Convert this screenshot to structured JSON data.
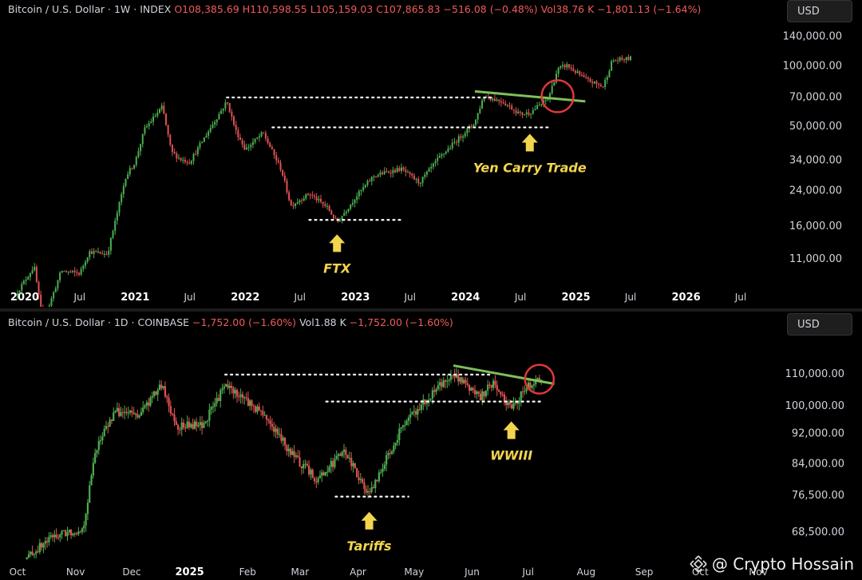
{
  "top": {
    "title": "Bitcoin / U.S. Dollar · 1W · INDEX",
    "stats": [
      "O108,385.69",
      "H110,598.55",
      "L105,159.03",
      "C107,865.83",
      "−516.08 (−0.48%)",
      "Vol38.76 K",
      "−1,801.13 (−1.64%)"
    ],
    "currency": "USD"
  },
  "bottom": {
    "title": "Bitcoin / U.S. Dollar · 1D · COINBASE",
    "stats": [
      "−1,752.00 (−1.60%)",
      "Vol1.88 K",
      "−1,752.00 (−1.60%)"
    ],
    "currency": "USD"
  },
  "watermark": "@ Crypto Hossain",
  "colors": {
    "up": "#4caf50",
    "down": "#e05252",
    "trendline": "#7fbf5a",
    "circle": "#e03838",
    "annotation": "#f2d54e",
    "dotted": "#ffffff"
  },
  "chart_data": [
    {
      "type": "candlestick",
      "title": "Bitcoin / U.S. Dollar · 1W · INDEX",
      "scale": "log",
      "y_ticks": [
        11000,
        16000,
        24000,
        34000,
        50000,
        70000,
        100000,
        140000
      ],
      "y_tick_labels": [
        "11,000.00",
        "16,000.00",
        "24,000.00",
        "34,000.00",
        "50,000.00",
        "70,000.00",
        "100,000.00",
        "140,000.00"
      ],
      "x_ticks": [
        {
          "label": "2020",
          "date": "2020-01",
          "major": true
        },
        {
          "label": "Jul",
          "date": "2020-07",
          "major": false
        },
        {
          "label": "2021",
          "date": "2021-01",
          "major": true
        },
        {
          "label": "Jul",
          "date": "2021-07",
          "major": false
        },
        {
          "label": "2022",
          "date": "2022-01",
          "major": true
        },
        {
          "label": "Jul",
          "date": "2022-07",
          "major": false
        },
        {
          "label": "2023",
          "date": "2023-01",
          "major": true
        },
        {
          "label": "Jul",
          "date": "2023-07",
          "major": false
        },
        {
          "label": "2024",
          "date": "2024-01",
          "major": true
        },
        {
          "label": "Jul",
          "date": "2024-07",
          "major": false
        },
        {
          "label": "2025",
          "date": "2025-01",
          "major": true
        },
        {
          "label": "Jul",
          "date": "2025-07",
          "major": false
        },
        {
          "label": "2026",
          "date": "2026-01",
          "major": true
        },
        {
          "label": "Jul",
          "date": "2026-07",
          "major": false
        }
      ],
      "price_path": [
        [
          "2019-12",
          7200
        ],
        [
          "2020-02",
          10000
        ],
        [
          "2020-03",
          5200
        ],
        [
          "2020-05",
          9500
        ],
        [
          "2020-07",
          9200
        ],
        [
          "2020-08",
          11800
        ],
        [
          "2020-10",
          11500
        ],
        [
          "2020-11",
          18000
        ],
        [
          "2020-12",
          28000
        ],
        [
          "2021-01",
          33000
        ],
        [
          "2021-02",
          48000
        ],
        [
          "2021-04",
          62000
        ],
        [
          "2021-05",
          37000
        ],
        [
          "2021-06",
          34000
        ],
        [
          "2021-07",
          33000
        ],
        [
          "2021-09",
          47000
        ],
        [
          "2021-11",
          66000
        ],
        [
          "2021-12",
          47000
        ],
        [
          "2022-01",
          38000
        ],
        [
          "2022-03",
          46000
        ],
        [
          "2022-05",
          30000
        ],
        [
          "2022-06",
          20000
        ],
        [
          "2022-08",
          23000
        ],
        [
          "2022-10",
          19500
        ],
        [
          "2022-11",
          16500
        ],
        [
          "2023-01",
          22000
        ],
        [
          "2023-03",
          28000
        ],
        [
          "2023-04",
          29000
        ],
        [
          "2023-06",
          30500
        ],
        [
          "2023-08",
          26000
        ],
        [
          "2023-10",
          34000
        ],
        [
          "2023-12",
          42000
        ],
        [
          "2024-02",
          52000
        ],
        [
          "2024-03",
          70000
        ],
        [
          "2024-05",
          66000
        ],
        [
          "2024-07",
          57000
        ],
        [
          "2024-08",
          58000
        ],
        [
          "2024-10",
          68000
        ],
        [
          "2024-11",
          95000
        ],
        [
          "2024-12",
          100000
        ],
        [
          "2025-02",
          85000
        ],
        [
          "2025-04",
          78000
        ],
        [
          "2025-05",
          105000
        ],
        [
          "2025-07",
          108000
        ]
      ],
      "annotations": [
        {
          "text": "FTX",
          "date": "2022-11",
          "price": 15500
        },
        {
          "text": "Yen Carry Trade",
          "date": "2024-08",
          "price": 49000
        }
      ],
      "levels": [
        {
          "price": 69000,
          "from": "2021-11",
          "to": "2024-04"
        },
        {
          "price": 49000,
          "from": "2022-04",
          "to": "2024-10"
        },
        {
          "price": 17000,
          "from": "2022-08",
          "to": "2023-06"
        }
      ],
      "trendline": {
        "from": [
          "2024-02",
          74000
        ],
        "to": [
          "2025-02",
          66000
        ]
      },
      "circle": {
        "date": "2024-11",
        "price": 70000
      }
    },
    {
      "type": "candlestick",
      "title": "Bitcoin / U.S. Dollar · 1D · COINBASE",
      "scale": "log",
      "y_ticks": [
        68500,
        76500,
        84000,
        92000,
        100000,
        110000
      ],
      "y_tick_labels": [
        "68,500.00",
        "76,500.00",
        "84,000.00",
        "92,000.00",
        "100,000.00",
        "110,000.00"
      ],
      "x_ticks": [
        {
          "label": "Oct",
          "date": "2024-10-01",
          "major": false
        },
        {
          "label": "Nov",
          "date": "2024-11-01",
          "major": false
        },
        {
          "label": "Dec",
          "date": "2024-12-01",
          "major": false
        },
        {
          "label": "2025",
          "date": "2025-01-01",
          "major": true
        },
        {
          "label": "Feb",
          "date": "2025-02-01",
          "major": false
        },
        {
          "label": "Mar",
          "date": "2025-03-01",
          "major": false
        },
        {
          "label": "Apr",
          "date": "2025-04-01",
          "major": false
        },
        {
          "label": "May",
          "date": "2025-05-01",
          "major": false
        },
        {
          "label": "Jun",
          "date": "2025-06-01",
          "major": false
        },
        {
          "label": "Jul",
          "date": "2025-07-01",
          "major": false
        },
        {
          "label": "Aug",
          "date": "2025-08-01",
          "major": false
        },
        {
          "label": "Sep",
          "date": "2025-09-01",
          "major": false
        },
        {
          "label": "Oct",
          "date": "2025-10-01",
          "major": false
        },
        {
          "label": "Nov",
          "date": "2025-11-01",
          "major": false
        }
      ],
      "price_path": [
        [
          "2024-10-05",
          63000
        ],
        [
          "2024-10-20",
          67500
        ],
        [
          "2024-11-05",
          69000
        ],
        [
          "2024-11-12",
          88000
        ],
        [
          "2024-11-22",
          98000
        ],
        [
          "2024-12-05",
          97000
        ],
        [
          "2024-12-17",
          106000
        ],
        [
          "2024-12-25",
          94000
        ],
        [
          "2025-01-08",
          94000
        ],
        [
          "2025-01-20",
          106000
        ],
        [
          "2025-01-30",
          102000
        ],
        [
          "2025-02-10",
          97000
        ],
        [
          "2025-02-25",
          86000
        ],
        [
          "2025-03-10",
          80000
        ],
        [
          "2025-03-25",
          87000
        ],
        [
          "2025-04-07",
          76000
        ],
        [
          "2025-04-15",
          84000
        ],
        [
          "2025-04-25",
          94000
        ],
        [
          "2025-05-10",
          103000
        ],
        [
          "2025-05-22",
          110000
        ],
        [
          "2025-06-05",
          102000
        ],
        [
          "2025-06-12",
          107000
        ],
        [
          "2025-06-22",
          99000
        ],
        [
          "2025-07-01",
          106000
        ],
        [
          "2025-07-08",
          108000
        ]
      ],
      "annotations": [
        {
          "text": "WWIII",
          "date": "2025-06-22",
          "price": 97000
        },
        {
          "text": "Tariffs",
          "date": "2025-04-07",
          "price": 74000
        }
      ],
      "levels": [
        {
          "price": 109500,
          "from": "2025-01-20",
          "to": "2025-06-12"
        },
        {
          "price": 101000,
          "from": "2025-03-15",
          "to": "2025-07-08"
        },
        {
          "price": 76000,
          "from": "2025-03-20",
          "to": "2025-04-28"
        }
      ],
      "trendline": {
        "from": [
          "2025-05-22",
          112500
        ],
        "to": [
          "2025-07-15",
          106500
        ]
      },
      "circle": {
        "date": "2025-07-07",
        "price": 108000
      }
    }
  ]
}
